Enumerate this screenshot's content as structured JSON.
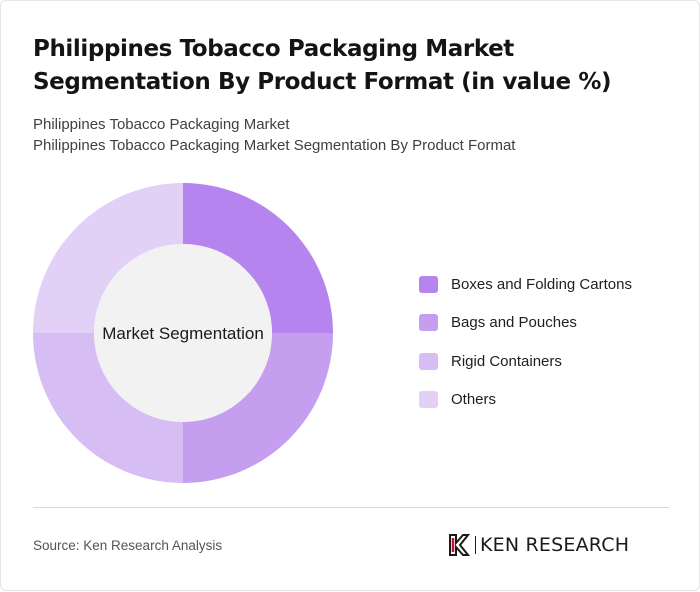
{
  "title": "Philippines Tobacco Packaging Market Segmentation By Product Format (in value %)",
  "subtitle_line1": "Philippines Tobacco Packaging Market",
  "subtitle_line2": "Philippines Tobacco Packaging Market Segmentation By Product Format",
  "source": "Source: Ken Research Analysis",
  "logo_text": "KEN RESEARCH",
  "chart_data": {
    "type": "pie",
    "variant": "donut",
    "center_label": "Market Segmentation",
    "unit": "%",
    "legend_position": "right",
    "categories": [
      "Boxes and Folding Cartons",
      "Bags and Pouches",
      "Rigid Containers",
      "Others"
    ],
    "values": [
      25,
      25,
      25,
      25
    ],
    "colors": [
      "#b584ee",
      "#c59ef0",
      "#d6bdf4",
      "#e2d0f7"
    ],
    "center_color": "#f2f2f2"
  }
}
